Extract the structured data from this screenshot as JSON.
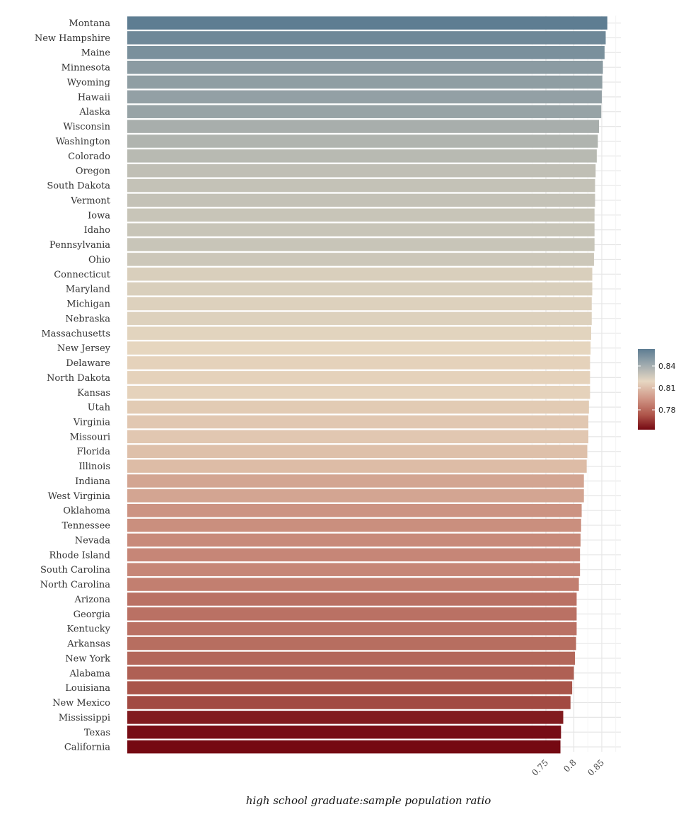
{
  "chart_data": {
    "type": "bar",
    "orientation": "horizontal",
    "xlabel": "high school graduate:sample population ratio",
    "ylabel": "",
    "x_ticks": [
      0.75,
      0.8,
      0.85
    ],
    "x_tick_labels": [
      "0.75",
      "0.8",
      "0.85"
    ],
    "grid": true,
    "legend": {
      "placement": "right",
      "ticks": [
        0.84,
        0.81,
        0.78
      ],
      "tick_labels": [
        "0.84",
        "0.81",
        "0.78"
      ]
    },
    "categories": [
      "Montana",
      "New Hampshire",
      "Maine",
      "Minnesota",
      "Wyoming",
      "Hawaii",
      "Alaska",
      "Wisconsin",
      "Washington",
      "Colorado",
      "Oregon",
      "South Dakota",
      "Vermont",
      "Iowa",
      "Idaho",
      "Pennsylvania",
      "Ohio",
      "Connecticut",
      "Maryland",
      "Michigan",
      "Nebraska",
      "Massachusetts",
      "New Jersey",
      "Delaware",
      "North Dakota",
      "Kansas",
      "Utah",
      "Virginia",
      "Missouri",
      "Florida",
      "Illinois",
      "Indiana",
      "West Virginia",
      "Oklahoma",
      "Tennessee",
      "Nevada",
      "Rhode Island",
      "South Carolina",
      "North Carolina",
      "Arizona",
      "Georgia",
      "Kentucky",
      "Arkansas",
      "New York",
      "Alabama",
      "Louisiana",
      "New Mexico",
      "Mississippi",
      "Texas",
      "California"
    ],
    "values": [
      0.86,
      0.857,
      0.855,
      0.852,
      0.851,
      0.85,
      0.849,
      0.845,
      0.843,
      0.841,
      0.839,
      0.838,
      0.838,
      0.837,
      0.837,
      0.837,
      0.836,
      0.833,
      0.833,
      0.832,
      0.832,
      0.831,
      0.83,
      0.829,
      0.829,
      0.829,
      0.827,
      0.826,
      0.826,
      0.824,
      0.823,
      0.818,
      0.818,
      0.814,
      0.813,
      0.812,
      0.811,
      0.811,
      0.809,
      0.805,
      0.805,
      0.805,
      0.804,
      0.802,
      0.8,
      0.797,
      0.794,
      0.781,
      0.777,
      0.776
    ]
  }
}
